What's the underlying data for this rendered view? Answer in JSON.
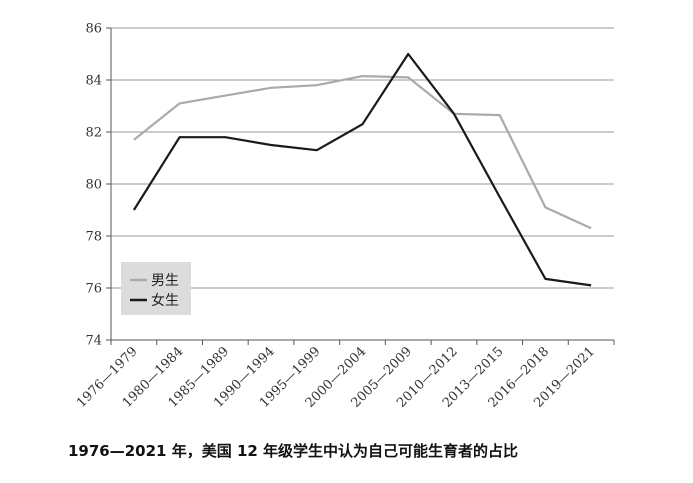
{
  "caption": "1976—2021 年，美国 12 年级学生中认为自己可能生育者的占比",
  "colors": {
    "male": "#aaaaaa",
    "female": "#1a1a1a",
    "grid": "#9a9a9a",
    "axis": "#555555",
    "legend_bg": "#dcdcdc"
  },
  "chart_data": {
    "type": "line",
    "title": "",
    "xlabel": "",
    "ylabel": "",
    "categories": [
      "1976—1979",
      "1980—1984",
      "1985—1989",
      "1990—1994",
      "1995—1999",
      "2000—2004",
      "2005—2009",
      "2010—2012",
      "2013—2015",
      "2016—2018",
      "2019—2021"
    ],
    "ylim": [
      74,
      86
    ],
    "yticks": [
      74,
      76,
      78,
      80,
      82,
      84,
      86
    ],
    "grid": true,
    "legend_position": "bottom-left",
    "series": [
      {
        "name": "男生",
        "color": "#aaaaaa",
        "values": [
          81.7,
          83.1,
          83.4,
          83.7,
          83.8,
          84.15,
          84.1,
          82.7,
          82.65,
          79.1,
          78.3
        ]
      },
      {
        "name": "女生",
        "color": "#1a1a1a",
        "values": [
          79.0,
          81.8,
          81.8,
          81.5,
          81.3,
          82.3,
          85.0,
          82.7,
          79.5,
          76.35,
          76.1
        ]
      }
    ]
  }
}
